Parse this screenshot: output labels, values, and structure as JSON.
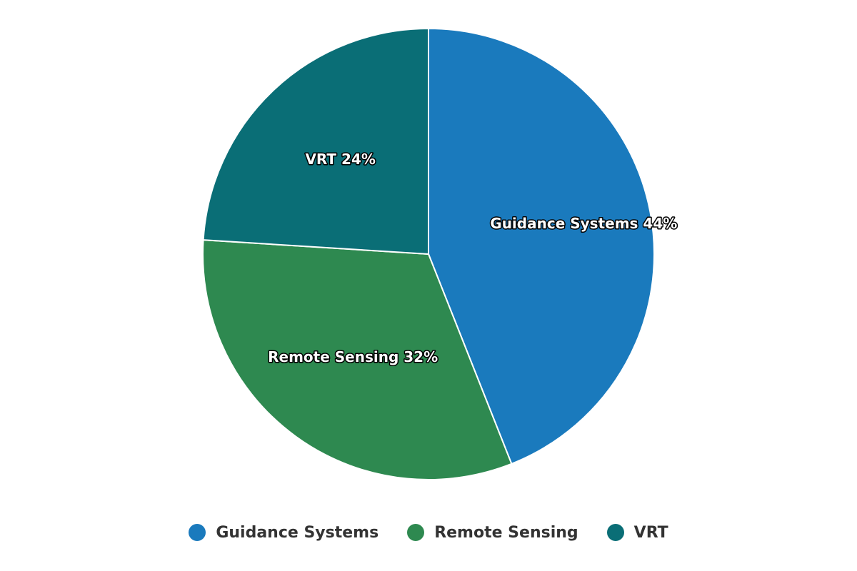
{
  "chart_data": {
    "type": "pie",
    "title": "",
    "categories": [
      "Guidance Systems",
      "Remote Sensing",
      "VRT"
    ],
    "values": [
      44,
      32,
      24
    ],
    "value_suffix": "%",
    "colors": [
      "#1a7abd",
      "#2e8950",
      "#0a6e76"
    ],
    "start_angle_deg": 0,
    "legend_position": "bottom-center",
    "data_labels": [
      "Guidance Systems 44%",
      "Remote Sensing 32%",
      "VRT 24%"
    ]
  },
  "legend": {
    "items": [
      {
        "label": "Guidance Systems",
        "color": "#1a7abd"
      },
      {
        "label": "Remote Sensing",
        "color": "#2e8950"
      },
      {
        "label": "VRT",
        "color": "#0a6e76"
      }
    ]
  }
}
